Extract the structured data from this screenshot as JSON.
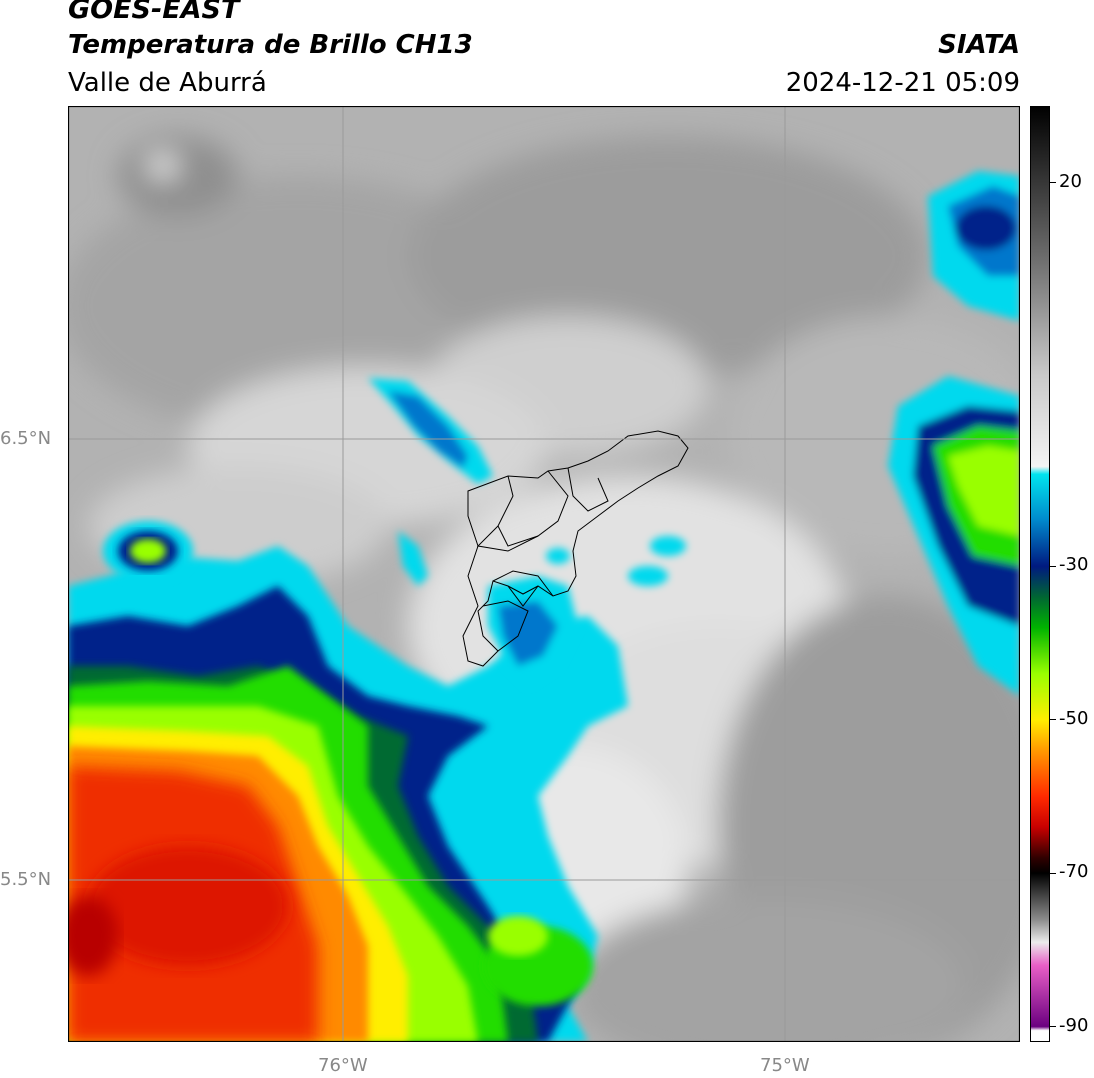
{
  "header": {
    "satellite": "GOES-EAST",
    "product": "Temperatura de Brillo CH13",
    "region": "Valle de Aburrá",
    "organization": "SIATA",
    "datetime": "2024-12-21 05:09"
  },
  "axes": {
    "lat_ticks": [
      {
        "value": 6.5,
        "label": "6.5°N"
      },
      {
        "value": 5.5,
        "label": "5.5°N"
      }
    ],
    "lon_ticks": [
      {
        "value": -76,
        "label": "76°W"
      },
      {
        "value": -75,
        "label": "75°W"
      }
    ],
    "grid": true
  },
  "colorbar": {
    "orientation": "vertical",
    "side": "right",
    "range": [
      -92,
      30
    ],
    "ticks": [
      {
        "value": 20,
        "label": "20"
      },
      {
        "value": -30,
        "label": "-30"
      },
      {
        "value": -50,
        "label": "-50"
      },
      {
        "value": -70,
        "label": "-70"
      },
      {
        "value": -90,
        "label": "-90"
      }
    ],
    "stops": [
      {
        "value": 30,
        "color": "#000000"
      },
      {
        "value": 10,
        "color": "#6e6e6e"
      },
      {
        "value": -5,
        "color": "#c9c9c9"
      },
      {
        "value": -17,
        "color": "#f4f4f4"
      },
      {
        "value": -18,
        "color": "#00e5ee"
      },
      {
        "value": -24,
        "color": "#0088cc"
      },
      {
        "value": -30,
        "color": "#001a80"
      },
      {
        "value": -34,
        "color": "#006633"
      },
      {
        "value": -38,
        "color": "#00b300"
      },
      {
        "value": -44,
        "color": "#99ff00"
      },
      {
        "value": -50,
        "color": "#ffee00"
      },
      {
        "value": -54,
        "color": "#ff9900"
      },
      {
        "value": -60,
        "color": "#ff2a00"
      },
      {
        "value": -64,
        "color": "#c80000"
      },
      {
        "value": -68,
        "color": "#300000"
      },
      {
        "value": -70,
        "color": "#000000"
      },
      {
        "value": -76,
        "color": "#8a8a8a"
      },
      {
        "value": -79,
        "color": "#ebebeb"
      },
      {
        "value": -82,
        "color": "#e85fc7"
      },
      {
        "value": -90,
        "color": "#6b0080"
      },
      {
        "value": -90.5,
        "color": "#ffffff"
      },
      {
        "value": -92,
        "color": "#ffffff"
      }
    ]
  },
  "map": {
    "colors": {
      "cold_cloud_red": "#e81e00",
      "orange": "#ff7a00",
      "yellow": "#ffee00",
      "green": "#22dd00",
      "light_green": "#99ff00",
      "dark_blue": "#00208a",
      "blue": "#0077cc",
      "cyan": "#00d9ee",
      "clear_gray": "#a8a8a8",
      "light_gray": "#e6e6e6",
      "municipal_boundary": "#000000",
      "graticule": "#9a9a9a"
    }
  }
}
